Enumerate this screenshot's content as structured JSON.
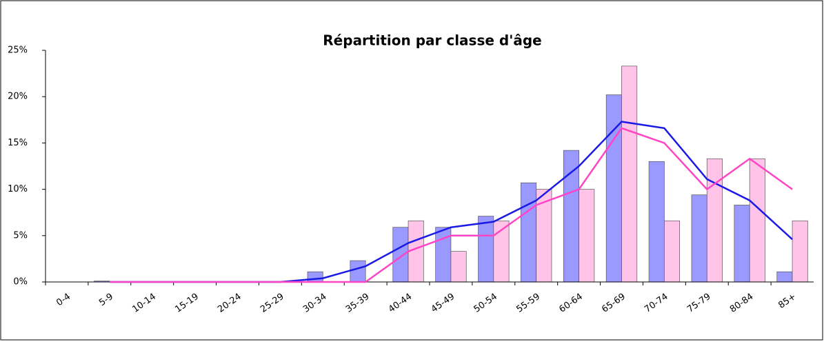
{
  "chart_data": {
    "type": "bar",
    "title": "Répartition par classe d'âge",
    "categories": [
      "0-4",
      "5-9",
      "10-14",
      "15-19",
      "20-24",
      "25-29",
      "30-34",
      "35-39",
      "40-44",
      "45-49",
      "50-54",
      "55-59",
      "60-64",
      "65-69",
      "70-74",
      "75-79",
      "80-84",
      "85+"
    ],
    "series": [
      {
        "type": "bar",
        "color": "#9999ff",
        "values": [
          0,
          0.1,
          0,
          0,
          0,
          0,
          1.1,
          2.3,
          5.9,
          5.9,
          7.1,
          10.7,
          14.2,
          20.2,
          13.0,
          9.4,
          8.3,
          1.1
        ]
      },
      {
        "type": "bar",
        "color": "#ffc4e8",
        "values": [
          0,
          0,
          0,
          0,
          0,
          0,
          0,
          0,
          6.6,
          3.3,
          6.6,
          10.0,
          10.0,
          23.3,
          6.6,
          13.3,
          13.3,
          6.6
        ]
      },
      {
        "type": "line",
        "color": "#1a1ae6",
        "values": [
          null,
          0,
          0,
          0,
          0,
          0,
          0.4,
          1.7,
          4.2,
          5.9,
          6.5,
          8.8,
          12.5,
          17.3,
          16.6,
          11.1,
          8.8,
          4.6
        ]
      },
      {
        "type": "line",
        "color": "#ff44c4",
        "values": [
          null,
          0,
          0,
          0,
          0,
          0,
          0,
          0,
          3.3,
          5.0,
          5.0,
          8.3,
          10.0,
          16.6,
          15.0,
          10.0,
          13.3,
          10.0
        ]
      }
    ],
    "ylim": [
      0,
      25
    ],
    "yticks": [
      {
        "value": 0,
        "label": "0%"
      },
      {
        "value": 5,
        "label": "5%"
      },
      {
        "value": 10,
        "label": "10%"
      },
      {
        "value": 15,
        "label": "15%"
      },
      {
        "value": 20,
        "label": "20%"
      },
      {
        "value": 25,
        "label": "25%"
      }
    ],
    "grid": false
  }
}
